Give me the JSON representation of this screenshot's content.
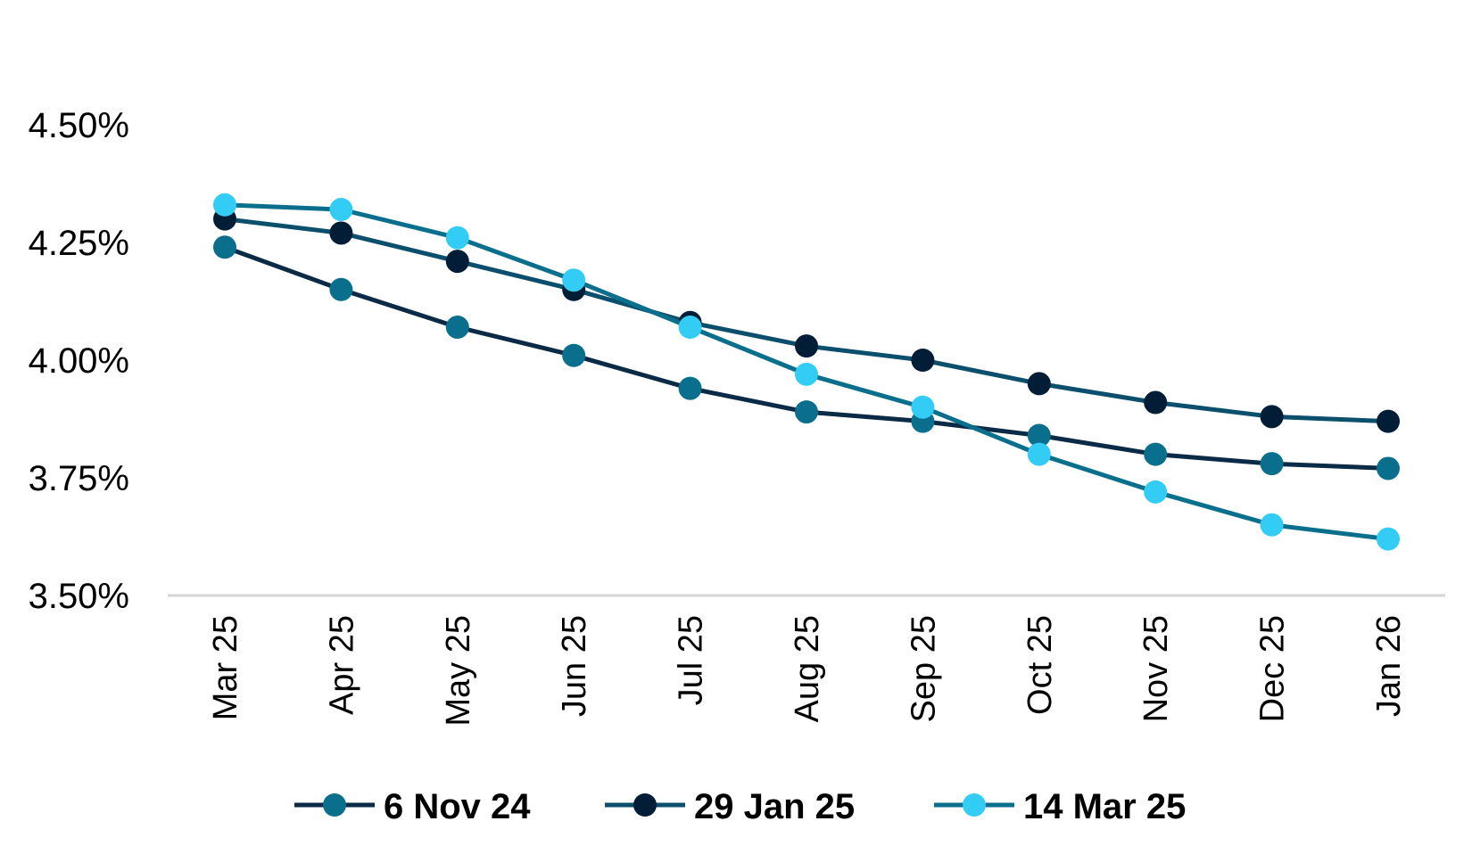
{
  "chart_data": {
    "type": "line",
    "title": "",
    "xlabel": "",
    "ylabel": "",
    "categories": [
      "Mar 25",
      "Apr 25",
      "May 25",
      "Jun 25",
      "Jul 25",
      "Aug 25",
      "Sep 25",
      "Oct 25",
      "Nov 25",
      "Dec 25",
      "Jan 26"
    ],
    "y_ticks": [
      "3.50%",
      "3.75%",
      "4.00%",
      "4.25%",
      "4.50%"
    ],
    "y_tick_values": [
      3.5,
      3.75,
      4.0,
      4.25,
      4.5
    ],
    "ylim": [
      3.5,
      4.5
    ],
    "grid": false,
    "legend_position": "bottom",
    "series": [
      {
        "name": "6 Nov 24",
        "line_color": "#0b2a45",
        "marker_color": "#0a6f8c",
        "values": [
          4.24,
          4.15,
          4.07,
          4.01,
          3.94,
          3.89,
          3.87,
          3.84,
          3.8,
          3.78,
          3.77
        ]
      },
      {
        "name": "29 Jan 25",
        "line_color": "#0b4f6c",
        "marker_color": "#021d36",
        "values": [
          4.3,
          4.27,
          4.21,
          4.15,
          4.08,
          4.03,
          4.0,
          3.95,
          3.91,
          3.88,
          3.87
        ]
      },
      {
        "name": "14 Mar 25",
        "line_color": "#0a6f8c",
        "marker_color": "#33ccf5",
        "values": [
          4.33,
          4.32,
          4.26,
          4.17,
          4.07,
          3.97,
          3.9,
          3.8,
          3.72,
          3.65,
          3.62
        ]
      }
    ]
  }
}
